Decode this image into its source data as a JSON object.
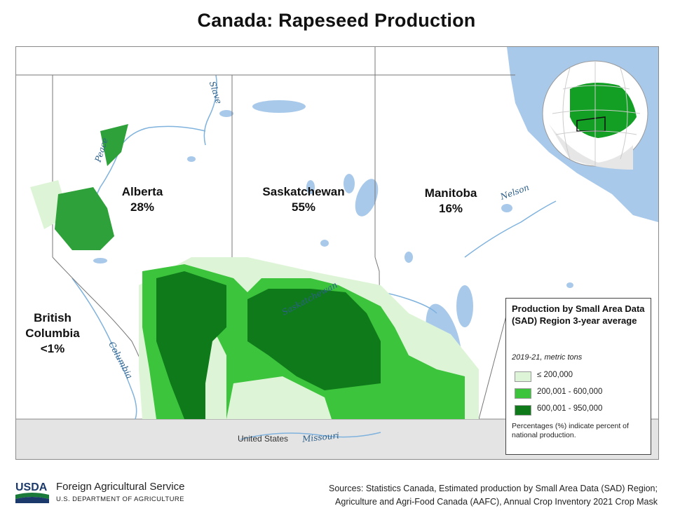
{
  "title": "Canada: Rapeseed Production",
  "provinces": [
    {
      "name": "Alberta",
      "share": "28%"
    },
    {
      "name": "Saskatchewan",
      "share": "55%"
    },
    {
      "name": "Manitoba",
      "share": "16%"
    },
    {
      "name": "British Columbia",
      "share": "<1%"
    }
  ],
  "rivers": [
    "Slave",
    "Peace",
    "Saskatchewan",
    "Nelson",
    "Columbia",
    "Missouri"
  ],
  "us_label": "United States",
  "legend": {
    "title": "Production by Small Area Data (SAD) Region 3-year average",
    "subtitle": "2019-21, metric tons",
    "classes": [
      {
        "label": "≤ 200,000",
        "color": "#ddf5d6"
      },
      {
        "label": "200,001 - 600,000",
        "color": "#3cc43c"
      },
      {
        "label": "600,001 - 950,000",
        "color": "#0f7a1a"
      }
    ],
    "note": "Percentages (%) indicate percent of national production."
  },
  "footer": {
    "logo_text": "USDA",
    "agency": "Foreign Agricultural Service",
    "department": "U.S. DEPARTMENT OF AGRICULTURE",
    "sources_line1": "Sources: Statistics Canada, Estimated production by Small Area Data (SAD) Region;",
    "sources_line2": "Agriculture and Agri-Food Canada (AAFC), Annual Crop Inventory 2021 Crop Mask"
  },
  "colors": {
    "water": "#a9c9ea",
    "us_area": "#e4e4e4",
    "low": "#ddf5d6",
    "mid": "#3cc43c",
    "high": "#0f7a1a"
  }
}
